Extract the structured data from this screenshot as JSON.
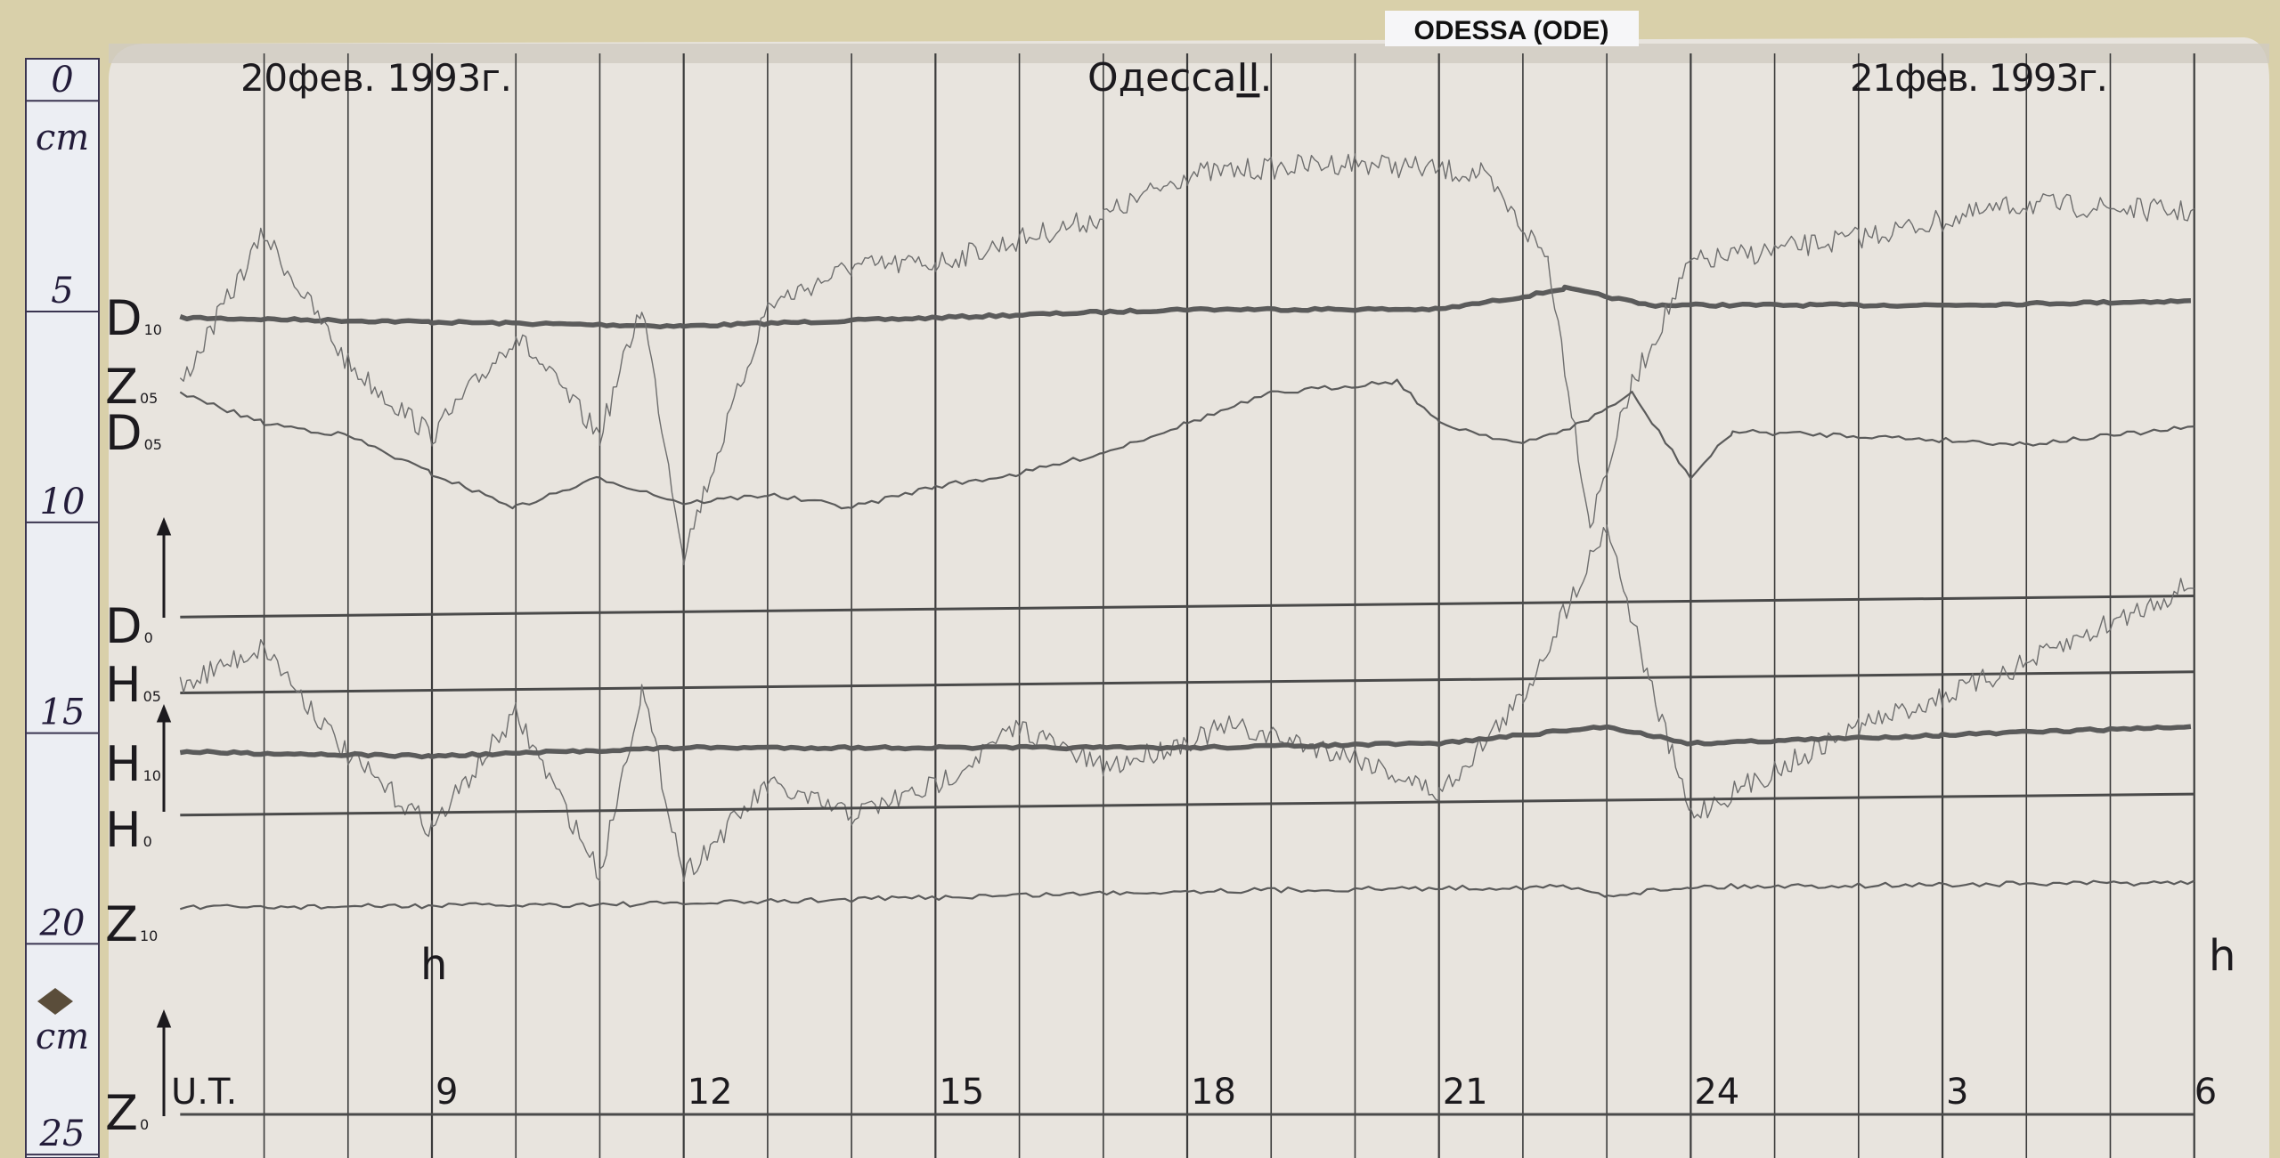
{
  "station_label": "ODESSA (ODE)",
  "header": {
    "date_left": "20фев. 1993г.",
    "title": "Одесса",
    "title_suffix": "II",
    "date_right": "21фев. 1993г."
  },
  "ruler": {
    "ticks": [
      "0",
      "5",
      "10",
      "15",
      "20",
      "25"
    ],
    "unit_top": "cm",
    "unit_bottom": "cm"
  },
  "chart_data": {
    "type": "line",
    "title": "",
    "xlabel": "U.T.",
    "x_unit_marks": [
      "h",
      "h"
    ],
    "x_range_hours": [
      6,
      30
    ],
    "x_ticks": [
      {
        "hour": 9,
        "label": "9"
      },
      {
        "hour": 12,
        "label": "12"
      },
      {
        "hour": 15,
        "label": "15"
      },
      {
        "hour": 18,
        "label": "18"
      },
      {
        "hour": 21,
        "label": "21"
      },
      {
        "hour": 24,
        "label": "24"
      },
      {
        "hour": 27,
        "label": "3"
      },
      {
        "hour": 30,
        "label": "6"
      }
    ],
    "y_unit": "cm (ruler)",
    "y_range": [
      0,
      25
    ],
    "grid": "vertical hourly lines",
    "channel_labels": [
      {
        "main": "D",
        "sub": "10"
      },
      {
        "main": "Z",
        "sub": "05"
      },
      {
        "main": "D",
        "sub": "05"
      },
      {
        "main": "D",
        "sub": "0"
      },
      {
        "main": "H",
        "sub": "05"
      },
      {
        "main": "H",
        "sub": "10"
      },
      {
        "main": "H",
        "sub": "0"
      },
      {
        "main": "Z",
        "sub": "10"
      },
      {
        "main": "Z",
        "sub": "0"
      }
    ],
    "series": [
      {
        "name": "D10",
        "style": "thick",
        "points": [
          [
            6,
            5.4
          ],
          [
            9,
            5.5
          ],
          [
            12,
            5.6
          ],
          [
            15,
            5.4
          ],
          [
            18,
            5.2
          ],
          [
            21,
            5.2
          ],
          [
            22,
            4.9
          ],
          [
            22.5,
            4.7
          ],
          [
            23.5,
            5.1
          ],
          [
            27,
            5.1
          ],
          [
            30,
            5.0
          ]
        ]
      },
      {
        "name": "Z05",
        "style": "thin-noisy",
        "points": [
          [
            6,
            7.0
          ],
          [
            7,
            3.4
          ],
          [
            8,
            6.5
          ],
          [
            9,
            8.2
          ],
          [
            10,
            5.8
          ],
          [
            11,
            8.2
          ],
          [
            11.5,
            5.1
          ],
          [
            12,
            11.0
          ],
          [
            13,
            5.1
          ],
          [
            14,
            4.2
          ],
          [
            15,
            4.1
          ],
          [
            17,
            3.0
          ],
          [
            18,
            2.0
          ],
          [
            20,
            1.7
          ],
          [
            21.5,
            2.0
          ],
          [
            22.3,
            4.0
          ],
          [
            22.8,
            10.3
          ],
          [
            23.3,
            7.0
          ],
          [
            24,
            4.1
          ],
          [
            26,
            3.5
          ],
          [
            28,
            2.7
          ],
          [
            30,
            2.9
          ]
        ]
      },
      {
        "name": "D05",
        "style": "thin",
        "points": [
          [
            6,
            7.2
          ],
          [
            7,
            7.9
          ],
          [
            8,
            8.2
          ],
          [
            9,
            9.1
          ],
          [
            10,
            9.9
          ],
          [
            11,
            9.2
          ],
          [
            12,
            9.8
          ],
          [
            13,
            9.6
          ],
          [
            14,
            9.9
          ],
          [
            15,
            9.4
          ],
          [
            16,
            9.1
          ],
          [
            17,
            8.6
          ],
          [
            18,
            7.9
          ],
          [
            19,
            7.2
          ],
          [
            20.5,
            6.9
          ],
          [
            21,
            7.9
          ],
          [
            22,
            8.4
          ],
          [
            22.7,
            7.9
          ],
          [
            23.3,
            7.2
          ],
          [
            24,
            9.2
          ],
          [
            24.5,
            8.1
          ],
          [
            26,
            8.2
          ],
          [
            28,
            8.4
          ],
          [
            30,
            8.0
          ]
        ]
      },
      {
        "name": "D0",
        "style": "baseline",
        "points": [
          [
            6,
            12.5
          ],
          [
            30,
            12.0
          ]
        ]
      },
      {
        "name": "H05 base",
        "style": "baseline",
        "points": [
          [
            6,
            14.3
          ],
          [
            30,
            13.8
          ]
        ]
      },
      {
        "name": "H05",
        "style": "thin-noisy",
        "points": [
          [
            6,
            14.1
          ],
          [
            7,
            13.2
          ],
          [
            8,
            15.8
          ],
          [
            9,
            17.5
          ],
          [
            10,
            14.8
          ],
          [
            11,
            18.6
          ],
          [
            11.5,
            14.2
          ],
          [
            12,
            18.6
          ],
          [
            13,
            16.5
          ],
          [
            14,
            17.2
          ],
          [
            15,
            16.5
          ],
          [
            16,
            15.1
          ],
          [
            17,
            16.1
          ],
          [
            18.5,
            15.1
          ],
          [
            20,
            15.8
          ],
          [
            21,
            16.7
          ],
          [
            22,
            14.4
          ],
          [
            23,
            10.3
          ],
          [
            23.5,
            14.0
          ],
          [
            24,
            17.2
          ],
          [
            26,
            15.1
          ],
          [
            27,
            14.4
          ],
          [
            28,
            13.6
          ],
          [
            30,
            11.7
          ]
        ]
      },
      {
        "name": "H10",
        "style": "thick",
        "points": [
          [
            6,
            15.7
          ],
          [
            9,
            15.8
          ],
          [
            12,
            15.6
          ],
          [
            18,
            15.6
          ],
          [
            21,
            15.5
          ],
          [
            23,
            15.1
          ],
          [
            24,
            15.5
          ],
          [
            27,
            15.3
          ],
          [
            30,
            15.1
          ]
        ]
      },
      {
        "name": "H0",
        "style": "baseline",
        "points": [
          [
            6,
            17.2
          ],
          [
            30,
            16.7
          ]
        ]
      },
      {
        "name": "Z10",
        "style": "thin",
        "points": [
          [
            6,
            19.4
          ],
          [
            12,
            19.3
          ],
          [
            18,
            19.0
          ],
          [
            22.5,
            18.9
          ],
          [
            23,
            19.1
          ],
          [
            24,
            18.9
          ],
          [
            30,
            18.8
          ]
        ]
      },
      {
        "name": "Z0",
        "style": "baseline",
        "points": [
          [
            6,
            24.3
          ],
          [
            30,
            24.3
          ]
        ]
      }
    ]
  },
  "colors": {
    "paper": "#e9e5df",
    "board": "#d8cfa8",
    "ink": "#1c1a1e",
    "trace": "#5a5a5a"
  }
}
